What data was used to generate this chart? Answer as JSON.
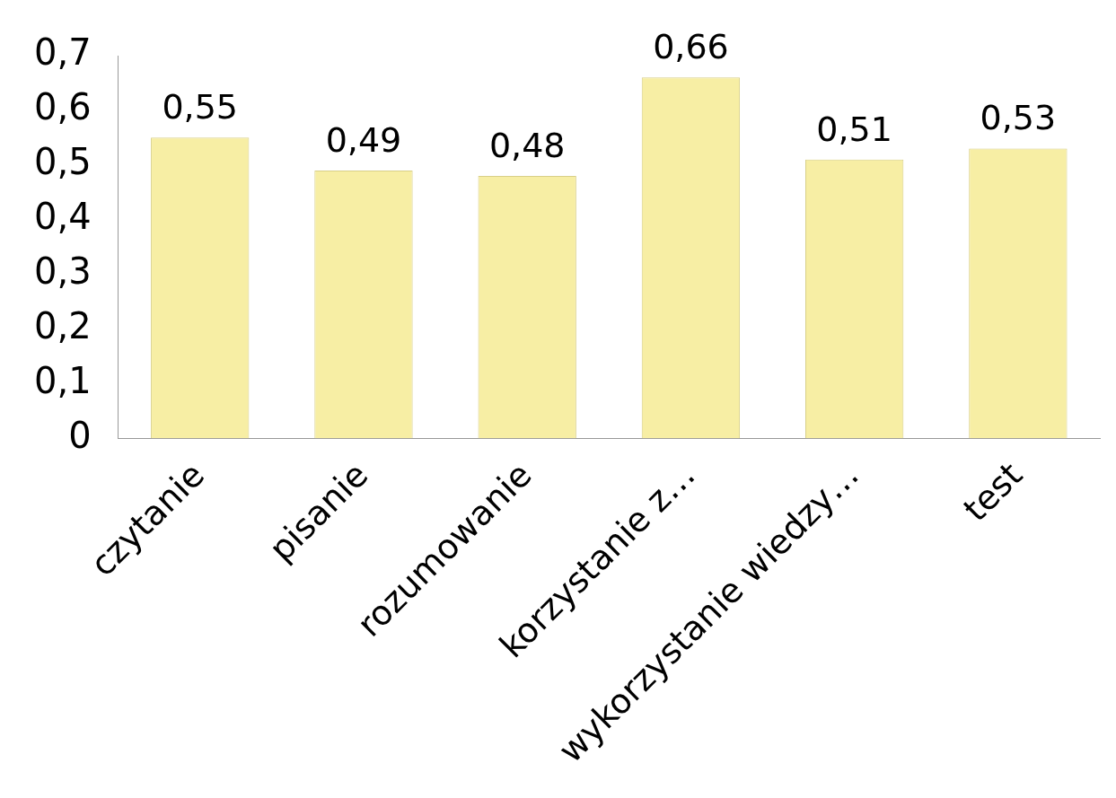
{
  "chart_data": {
    "type": "bar",
    "categories": [
      "czytanie",
      "pisanie",
      "rozumowanie",
      "korzystanie z…",
      "wykorzystanie wiedzy…",
      "test"
    ],
    "values": [
      0.55,
      0.49,
      0.48,
      0.66,
      0.51,
      0.53
    ],
    "value_labels": [
      "0,55",
      "0,49",
      "0,48",
      "0,66",
      "0,51",
      "0,53"
    ],
    "color": "#f7eea4",
    "ylim": [
      0,
      0.7
    ],
    "yticks": [
      {
        "value": 0,
        "label": "0"
      },
      {
        "value": 0.1,
        "label": "0,1"
      },
      {
        "value": 0.2,
        "label": "0,2"
      },
      {
        "value": 0.3,
        "label": "0,3"
      },
      {
        "value": 0.4,
        "label": "0,4"
      },
      {
        "value": 0.5,
        "label": "0,5"
      },
      {
        "value": 0.6,
        "label": "0,6"
      },
      {
        "value": 0.7,
        "label": "0,7"
      }
    ],
    "grid": false,
    "legend": false
  }
}
